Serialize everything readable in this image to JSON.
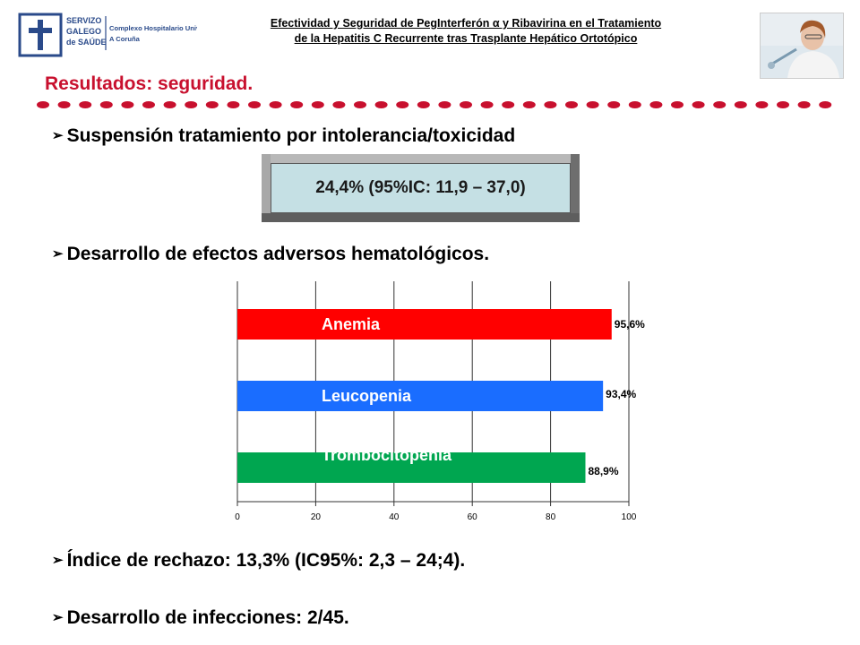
{
  "logo": {
    "org_line1": "SERVIZO",
    "org_line2": "GALEGO",
    "org_line3": "de SAÚDE",
    "hospital_line1": "Complexo Hospitalario Universitario",
    "hospital_line2": "A Coruña"
  },
  "header": {
    "title_line1": "Efectividad y Seguridad de PegInterferón α y Ribavirina en el Tratamiento",
    "title_line2": "de la Hepatitis C Recurrente tras Trasplante Hepático Ortotópico"
  },
  "slide": {
    "heading": "Resultados: seguridad.",
    "heading_color": "#c8102e",
    "bullet1": "Suspensión tratamiento por intolerancia/toxicidad",
    "stat_box_value": "24,4% (95%IC: 11,9 – 37,0)",
    "bullet2": "Desarrollo de efectos adversos hematológicos.",
    "bullet3": "Índice de rechazo: 13,3% (IC95%: 2,3 – 24;4).",
    "bullet4": "Desarrollo de infecciones: 2/45."
  },
  "chart_data": {
    "type": "bar",
    "orientation": "horizontal",
    "categories": [
      "Anemia",
      "Leucopenia",
      "Trombocitopenia"
    ],
    "values": [
      95.6,
      93.4,
      88.9
    ],
    "value_labels": [
      "95,6%",
      "93,4%",
      "88,9%"
    ],
    "colors": [
      "#ff0000",
      "#1a6dff",
      "#00a650"
    ],
    "xlim": [
      0,
      100
    ],
    "xticks": [
      0,
      20,
      40,
      60,
      80,
      100
    ],
    "grid": true,
    "legend": "none"
  }
}
